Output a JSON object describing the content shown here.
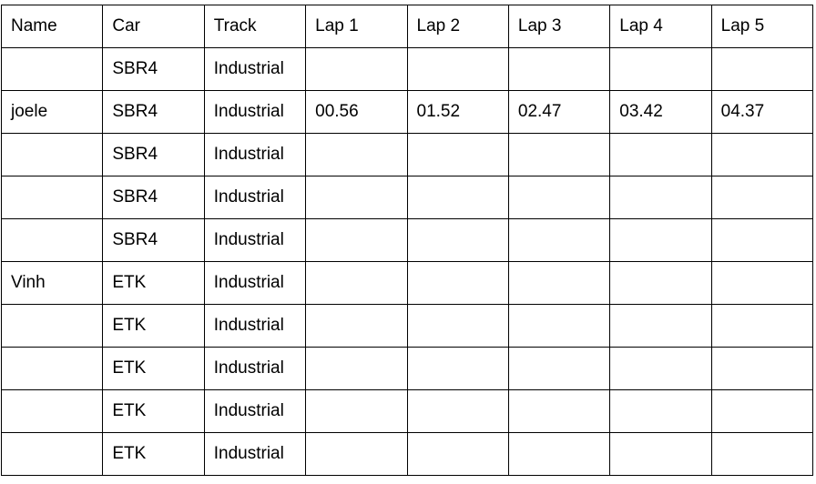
{
  "table": {
    "header": [
      "Name",
      "Car",
      "Track",
      "Lap 1",
      "Lap 2",
      "Lap 3",
      "Lap 4",
      "Lap 5"
    ],
    "rows": [
      [
        null,
        "SBR4",
        "Industrial",
        null,
        null,
        null,
        null,
        null
      ],
      [
        "joele",
        "SBR4",
        "Industrial",
        "00.56",
        "01.52",
        "02.47",
        "03.42",
        "04.37"
      ],
      [
        null,
        "SBR4",
        "Industrial",
        null,
        null,
        null,
        null,
        null
      ],
      [
        null,
        "SBR4",
        "Industrial",
        null,
        null,
        null,
        null,
        null
      ],
      [
        null,
        "SBR4",
        "Industrial",
        null,
        null,
        null,
        null,
        null
      ],
      [
        "Vinh",
        "ETK",
        "Industrial",
        null,
        null,
        null,
        null,
        null
      ],
      [
        null,
        "ETK",
        "Industrial",
        null,
        null,
        null,
        null,
        null
      ],
      [
        null,
        "ETK",
        "Industrial",
        null,
        null,
        null,
        null,
        null
      ],
      [
        null,
        "ETK",
        "Industrial",
        null,
        null,
        null,
        null,
        null
      ],
      [
        null,
        "ETK",
        "Industrial",
        null,
        null,
        null,
        null,
        null
      ]
    ]
  }
}
